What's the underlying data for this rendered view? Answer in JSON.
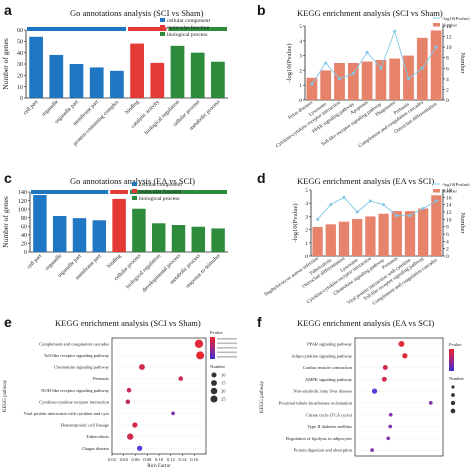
{
  "chart_data": [
    {
      "id": "a",
      "panel_label": "a",
      "type": "bar",
      "title": "Go annotations analysis (SCI vs Sham)",
      "ylabel": "Number of genes",
      "ylim": [
        0,
        60
      ],
      "yticks": [
        0,
        10,
        20,
        30,
        40,
        50,
        60
      ],
      "categories": [
        "cell part",
        "organelle",
        "organelle part",
        "membrane part",
        "protein-containing complex",
        "binding",
        "catalytic activity",
        "biological regulation",
        "cellular process",
        "metabolic process"
      ],
      "values": [
        54,
        38,
        30,
        27,
        24,
        48,
        31,
        46,
        40,
        32
      ],
      "groups": [
        "cellular component",
        "cellular component",
        "cellular component",
        "cellular component",
        "cellular component",
        "molecular function",
        "molecular function",
        "biological process",
        "biological process",
        "biological process"
      ],
      "legend": [
        "cellular component",
        "molecular function",
        "biological process"
      ],
      "legend_position": "top-right",
      "colors": {
        "cellular component": "#1f77c4",
        "molecular function": "#e53935",
        "biological process": "#2e8b3c"
      }
    },
    {
      "id": "b",
      "panel_label": "b",
      "type": "bar",
      "title": "KEGG enrichment analysis (SCI vs Sham)",
      "ylabel": "-log10(Pvalue)",
      "y2label": "Number",
      "ylim": [
        0,
        5
      ],
      "yticks": [
        0,
        1,
        2,
        3,
        4,
        5
      ],
      "y2lim": [
        0,
        14
      ],
      "y2ticks": [
        0,
        2,
        4,
        6,
        8,
        10,
        12,
        14
      ],
      "categories": [
        "Prion diseases",
        "Lysosome",
        "Cytokine-cytokine receptor interaction",
        "PPAR signaling pathway",
        "Apoptosis",
        "Toll-like receptor signaling pathway",
        "Phagosome",
        "Pertussis",
        "Complement and coagulation cascades",
        "Osteoclast differentiation"
      ],
      "series": [
        {
          "name": "-log10(Pvalue)",
          "kind": "bar",
          "values": [
            1.5,
            2.0,
            2.5,
            2.5,
            2.6,
            2.7,
            2.8,
            3.0,
            4.2,
            4.7
          ]
        },
        {
          "name": "Number",
          "kind": "line",
          "values": [
            3,
            7,
            4,
            5,
            9,
            6,
            13,
            4,
            6,
            10
          ]
        }
      ],
      "legend": [
        "-log10(Pvalue)",
        "Number"
      ],
      "legend_position": "top-right",
      "colors": {
        "bar": "#e8836b",
        "line": "#7ec8e8"
      }
    },
    {
      "id": "c",
      "panel_label": "c",
      "type": "bar",
      "title": "Go annotations analysis (EA vs SCI)",
      "ylabel": "Number of genes",
      "ylim": [
        0,
        140
      ],
      "yticks": [
        0,
        20,
        40,
        60,
        80,
        100,
        120,
        140
      ],
      "categories": [
        "cell part",
        "organelle",
        "organelle part",
        "membrane part",
        "binding",
        "cellular process",
        "biological regulation",
        "developmental process",
        "metabolic process",
        "response to stimulus"
      ],
      "values": [
        133,
        84,
        79,
        74,
        124,
        101,
        67,
        63,
        59,
        55
      ],
      "groups": [
        "cellular component",
        "cellular component",
        "cellular component",
        "cellular component",
        "molecular function",
        "biological process",
        "biological process",
        "biological process",
        "biological process",
        "biological process"
      ],
      "legend": [
        "cellular component",
        "molecular function",
        "biological process"
      ],
      "legend_position": "top-center",
      "colors": {
        "cellular component": "#1f77c4",
        "molecular function": "#e53935",
        "biological process": "#2e8b3c"
      }
    },
    {
      "id": "d",
      "panel_label": "d",
      "type": "bar",
      "title": "KEGG enrichment analysis (EA vs SCI)",
      "ylabel": "-log10(Pvalue)",
      "y2label": "Number",
      "ylim": [
        0,
        5
      ],
      "yticks": [
        0,
        1,
        2,
        3,
        4,
        5
      ],
      "y2lim": [
        0,
        18
      ],
      "y2ticks": [
        0,
        2,
        4,
        6,
        8,
        10,
        12,
        14,
        16,
        18
      ],
      "categories": [
        "Staphylococcus aureus infection",
        "Tuberculosis",
        "Osteoclast differentiation",
        "Lysosome",
        "Cytokine-cytokine receptor interaction",
        "Chemokine signaling pathway",
        "Pertussis",
        "Viral protein interaction with cytokine",
        "Toll-like receptor signaling pathway",
        "Complement and coagulation cascades"
      ],
      "series": [
        {
          "name": "-log10(Pvalue)",
          "kind": "bar",
          "values": [
            2.2,
            2.4,
            2.6,
            2.8,
            3.0,
            3.2,
            3.4,
            3.4,
            3.6,
            4.6
          ]
        },
        {
          "name": "Number",
          "kind": "line",
          "values": [
            10,
            14,
            16,
            12,
            15,
            14,
            11,
            11,
            13,
            15
          ]
        }
      ],
      "legend": [
        "-log10(Pvalue)",
        "Number"
      ],
      "legend_position": "top-right",
      "colors": {
        "bar": "#e8836b",
        "line": "#7ec8e8"
      }
    },
    {
      "id": "e",
      "panel_label": "e",
      "type": "scatter",
      "title": "KEGG enrichment analysis (SCI vs Sham)",
      "xlabel": "Rich Factor",
      "ylabel": "KEGG pathway",
      "xlim": [
        0.02,
        0.18
      ],
      "xticks": [
        0.02,
        0.04,
        0.06,
        0.08,
        0.1,
        0.12,
        0.14,
        0.16
      ],
      "categories": [
        "Complement and coagulation cascades",
        "Toll-like receptor signaling pathway",
        "Chemokine signaling pathway",
        "Pertussis",
        "NOD-like receptor signaling pathway",
        "Cytokine-cytokine receptor interaction",
        "Viral protein interaction with cytokine and cyto",
        "Hematopoietic cell lineage",
        "Tuberculosis",
        "Chagas disease"
      ],
      "points": [
        {
          "x": 0.168,
          "size": 20,
          "p": 0.005
        },
        {
          "x": 0.17,
          "size": 18,
          "p": 0.004
        },
        {
          "x": 0.071,
          "size": 8,
          "p": 0.01
        },
        {
          "x": 0.137,
          "size": 4,
          "p": 0.011
        },
        {
          "x": 0.049,
          "size": 4,
          "p": 0.012
        },
        {
          "x": 0.047,
          "size": 4,
          "p": 0.015
        },
        {
          "x": 0.124,
          "size": 2,
          "p": 0.03
        },
        {
          "x": 0.059,
          "size": 6,
          "p": 0.008
        },
        {
          "x": 0.051,
          "size": 10,
          "p": 0.01
        },
        {
          "x": 0.067,
          "size": 6,
          "p": 0.04
        }
      ],
      "legend_size_title": "Number",
      "legend_sizes": [
        10,
        15,
        20,
        25
      ],
      "legend_color_title": "Pvalue"
    },
    {
      "id": "f",
      "panel_label": "f",
      "type": "scatter",
      "title": "KEGG enrichment analysis (EA vs SCI)",
      "xlabel": "",
      "ylabel": "KEGG pathway",
      "xlim": [
        0.02,
        0.2
      ],
      "categories": [
        "PPAR signaling pathway",
        "Adipocytokine signaling pathway",
        "Cardiac muscle contraction",
        "AMPK signaling pathway",
        "Non-alcoholic fatty liver disease",
        "Proximal tubule bicarbonate reclamation",
        "Citrate cycle (TCA cycle)",
        "Type II diabetes mellitus",
        "Regulation of lipolysis in adipocytes",
        "Protein digestion and absorption"
      ],
      "points": [
        {
          "x": 0.115,
          "size": 8,
          "p": 0.005
        },
        {
          "x": 0.122,
          "size": 6,
          "p": 0.006
        },
        {
          "x": 0.082,
          "size": 5,
          "p": 0.01
        },
        {
          "x": 0.08,
          "size": 5,
          "p": 0.01
        },
        {
          "x": 0.06,
          "size": 6,
          "p": 0.04
        },
        {
          "x": 0.175,
          "size": 2,
          "p": 0.03
        },
        {
          "x": 0.093,
          "size": 2,
          "p": 0.03
        },
        {
          "x": 0.092,
          "size": 2,
          "p": 0.03
        },
        {
          "x": 0.088,
          "size": 2,
          "p": 0.03
        },
        {
          "x": 0.055,
          "size": 2,
          "p": 0.03
        }
      ],
      "legend_size_title": "Number",
      "legend_color_title": "Pvalue"
    }
  ]
}
